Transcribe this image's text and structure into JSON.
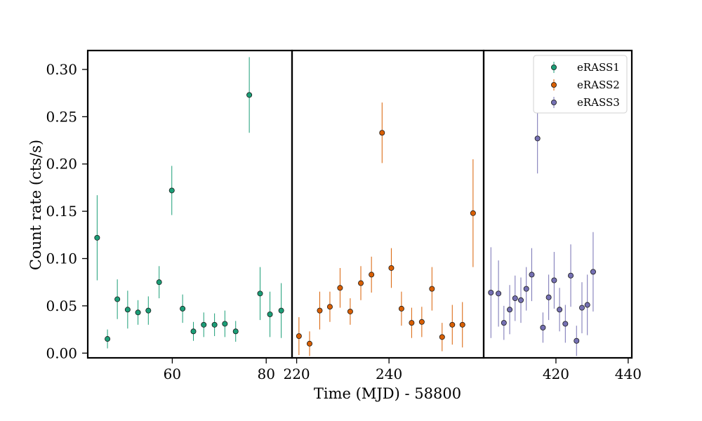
{
  "chart_data": {
    "type": "scatter",
    "ylabel": "Count rate (cts/s)",
    "xlabel": "Time (MJD) - 58800",
    "ylim": [
      -0.005,
      0.32
    ],
    "yticks": [
      "0.00",
      "0.05",
      "0.10",
      "0.15",
      "0.20",
      "0.25",
      "0.30"
    ],
    "legend_position": "top-right",
    "grid": false,
    "panels": [
      {
        "xlim": [
          42,
          85.5
        ],
        "xticks": [
          "60",
          "80"
        ],
        "series": "eRASS1"
      },
      {
        "xlim": [
          219,
          260.5
        ],
        "xticks": [
          "220",
          "240"
        ],
        "series": "eRASS2"
      },
      {
        "xlim": [
          400,
          441
        ],
        "xticks": [
          "420",
          "440"
        ],
        "series": "eRASS3"
      }
    ],
    "series": [
      {
        "name": "eRASS1",
        "color": "#1b9e77",
        "points": [
          {
            "x": 44,
            "y": 0.122,
            "err": 0.045
          },
          {
            "x": 46.2,
            "y": 0.015,
            "err": 0.01
          },
          {
            "x": 48.3,
            "y": 0.057,
            "err": 0.021
          },
          {
            "x": 50.5,
            "y": 0.046,
            "err": 0.02
          },
          {
            "x": 52.7,
            "y": 0.043,
            "err": 0.013
          },
          {
            "x": 54.9,
            "y": 0.045,
            "err": 0.015
          },
          {
            "x": 57.2,
            "y": 0.075,
            "err": 0.017
          },
          {
            "x": 59.9,
            "y": 0.172,
            "err": 0.026
          },
          {
            "x": 62.2,
            "y": 0.047,
            "err": 0.015
          },
          {
            "x": 64.5,
            "y": 0.023,
            "err": 0.01
          },
          {
            "x": 66.7,
            "y": 0.03,
            "err": 0.013
          },
          {
            "x": 69.0,
            "y": 0.03,
            "err": 0.012
          },
          {
            "x": 71.2,
            "y": 0.031,
            "err": 0.014
          },
          {
            "x": 73.5,
            "y": 0.023,
            "err": 0.011
          },
          {
            "x": 76.4,
            "y": 0.273,
            "err": 0.04
          },
          {
            "x": 78.7,
            "y": 0.063,
            "err": 0.028
          },
          {
            "x": 80.8,
            "y": 0.041,
            "err": 0.024
          },
          {
            "x": 83.2,
            "y": 0.045,
            "err": 0.029
          }
        ]
      },
      {
        "name": "eRASS2",
        "color": "#d95f02",
        "points": [
          {
            "x": 220.5,
            "y": 0.018,
            "err": 0.02
          },
          {
            "x": 222.8,
            "y": 0.01,
            "err": 0.013
          },
          {
            "x": 225.0,
            "y": 0.045,
            "err": 0.02
          },
          {
            "x": 227.2,
            "y": 0.049,
            "err": 0.016
          },
          {
            "x": 229.4,
            "y": 0.069,
            "err": 0.021
          },
          {
            "x": 231.6,
            "y": 0.044,
            "err": 0.014
          },
          {
            "x": 233.9,
            "y": 0.074,
            "err": 0.018
          },
          {
            "x": 236.2,
            "y": 0.083,
            "err": 0.019
          },
          {
            "x": 238.5,
            "y": 0.233,
            "err": 0.032
          },
          {
            "x": 240.5,
            "y": 0.09,
            "err": 0.021
          },
          {
            "x": 242.7,
            "y": 0.047,
            "err": 0.018
          },
          {
            "x": 244.9,
            "y": 0.032,
            "err": 0.016
          },
          {
            "x": 247.1,
            "y": 0.033,
            "err": 0.016
          },
          {
            "x": 249.3,
            "y": 0.068,
            "err": 0.023
          },
          {
            "x": 251.5,
            "y": 0.017,
            "err": 0.015
          },
          {
            "x": 253.7,
            "y": 0.03,
            "err": 0.021
          },
          {
            "x": 255.9,
            "y": 0.03,
            "err": 0.024
          },
          {
            "x": 258.2,
            "y": 0.148,
            "err": 0.057
          }
        ]
      },
      {
        "name": "eRASS3",
        "color": "#7570b3",
        "points": [
          {
            "x": 402.0,
            "y": 0.064,
            "err": 0.048
          },
          {
            "x": 404.1,
            "y": 0.063,
            "err": 0.035
          },
          {
            "x": 405.6,
            "y": 0.032,
            "err": 0.018
          },
          {
            "x": 407.2,
            "y": 0.046,
            "err": 0.026
          },
          {
            "x": 408.7,
            "y": 0.058,
            "err": 0.024
          },
          {
            "x": 410.3,
            "y": 0.056,
            "err": 0.024
          },
          {
            "x": 411.8,
            "y": 0.068,
            "err": 0.023
          },
          {
            "x": 413.3,
            "y": 0.083,
            "err": 0.028
          },
          {
            "x": 414.9,
            "y": 0.227,
            "err": 0.037
          },
          {
            "x": 416.4,
            "y": 0.027,
            "err": 0.016
          },
          {
            "x": 418.0,
            "y": 0.059,
            "err": 0.024
          },
          {
            "x": 419.5,
            "y": 0.077,
            "err": 0.03
          },
          {
            "x": 421.0,
            "y": 0.046,
            "err": 0.023
          },
          {
            "x": 422.6,
            "y": 0.031,
            "err": 0.02
          },
          {
            "x": 424.1,
            "y": 0.082,
            "err": 0.033
          },
          {
            "x": 425.7,
            "y": 0.013,
            "err": 0.016
          },
          {
            "x": 427.2,
            "y": 0.048,
            "err": 0.027
          },
          {
            "x": 428.7,
            "y": 0.051,
            "err": 0.032
          },
          {
            "x": 430.3,
            "y": 0.086,
            "err": 0.042
          }
        ]
      }
    ]
  }
}
